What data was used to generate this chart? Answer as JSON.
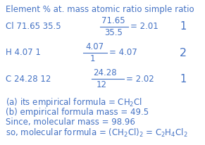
{
  "background_color": "#ffffff",
  "text_color": "#4472c4",
  "figsize": [
    2.91,
    2.06
  ],
  "dpi": 100,
  "header": "Element % at. mass atomic ratio simple ratio",
  "row1_left": "Cl 71.65 35.5",
  "row1_num": "71.65",
  "row1_den": "35.5",
  "row1_eq": "= 2.01",
  "row1_ratio": "1",
  "row2_left": "H 4.07 1",
  "row2_num": "4.07",
  "row2_den": "1",
  "row2_eq": "= 4.07",
  "row2_ratio": "2",
  "row3_left": "C 24.28 12",
  "row3_num": "24.28",
  "row3_den": "12",
  "row3_eq": "= 2.02",
  "row3_ratio": "1",
  "line_a": "(a) its empirical formula = CH$_2$Cl",
  "line_b": "(b) empirical formula mass = 49.5",
  "line_c": "Since, molecular mass = 98.96",
  "line_d": "so, molecular formula = (CH$_2$Cl)$_2$ = C$_2$H$_4$Cl$_2$",
  "fs": 8.5,
  "ratio_fs_big": 10.5
}
